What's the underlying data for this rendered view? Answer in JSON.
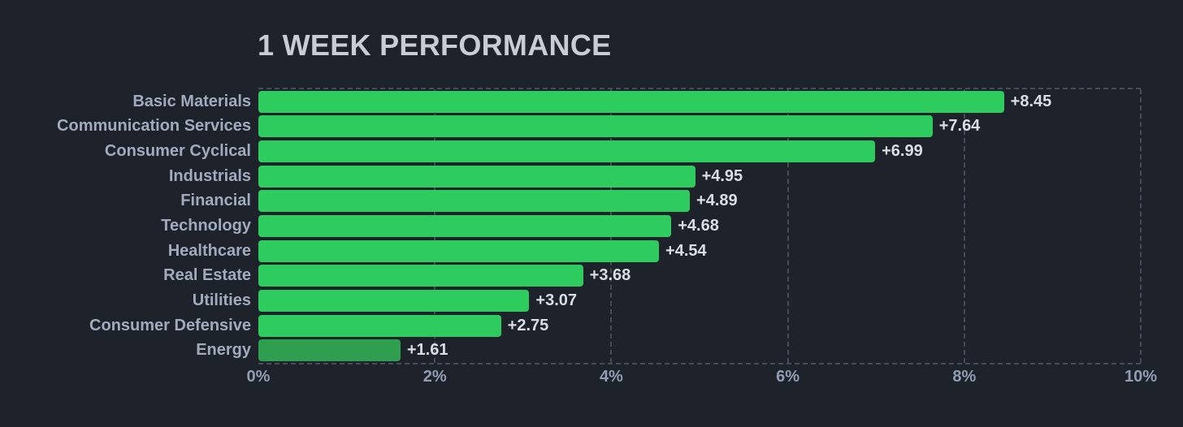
{
  "colors": {
    "background": "#1e222b",
    "title": "#c8ccd5",
    "grid": "#464c59",
    "category_label": "#a2abbd",
    "value_label": "#d9dde5",
    "tick_label": "#939db1",
    "bar_green": "#2ecc5e",
    "bar_green_muted": "#2f9e4f"
  },
  "chart_data": {
    "type": "bar",
    "orientation": "horizontal",
    "title": "1 WEEK PERFORMANCE",
    "categories": [
      "Basic Materials",
      "Communication Services",
      "Consumer Cyclical",
      "Industrials",
      "Financial",
      "Technology",
      "Healthcare",
      "Real Estate",
      "Utilities",
      "Consumer Defensive",
      "Energy"
    ],
    "values": [
      8.45,
      7.64,
      6.99,
      4.95,
      4.89,
      4.68,
      4.54,
      3.68,
      3.07,
      2.75,
      1.61
    ],
    "value_labels": [
      "+8.45",
      "+7.64",
      "+6.99",
      "+4.95",
      "+4.89",
      "+4.68",
      "+4.54",
      "+3.68",
      "+3.07",
      "+2.75",
      "+1.61"
    ],
    "xlabel": "",
    "ylabel": "",
    "xlim": [
      0,
      10
    ],
    "x_ticks": [
      "0%",
      "2%",
      "4%",
      "6%",
      "8%",
      "10%"
    ],
    "grid": "dashed vertical gridlines every 2%, dashed top and bottom plot borders",
    "legend": "none",
    "bar_color": "#2ecc5e",
    "muted_bar_color": "#2f9e4f",
    "muted_bars": [
      "Energy"
    ]
  }
}
